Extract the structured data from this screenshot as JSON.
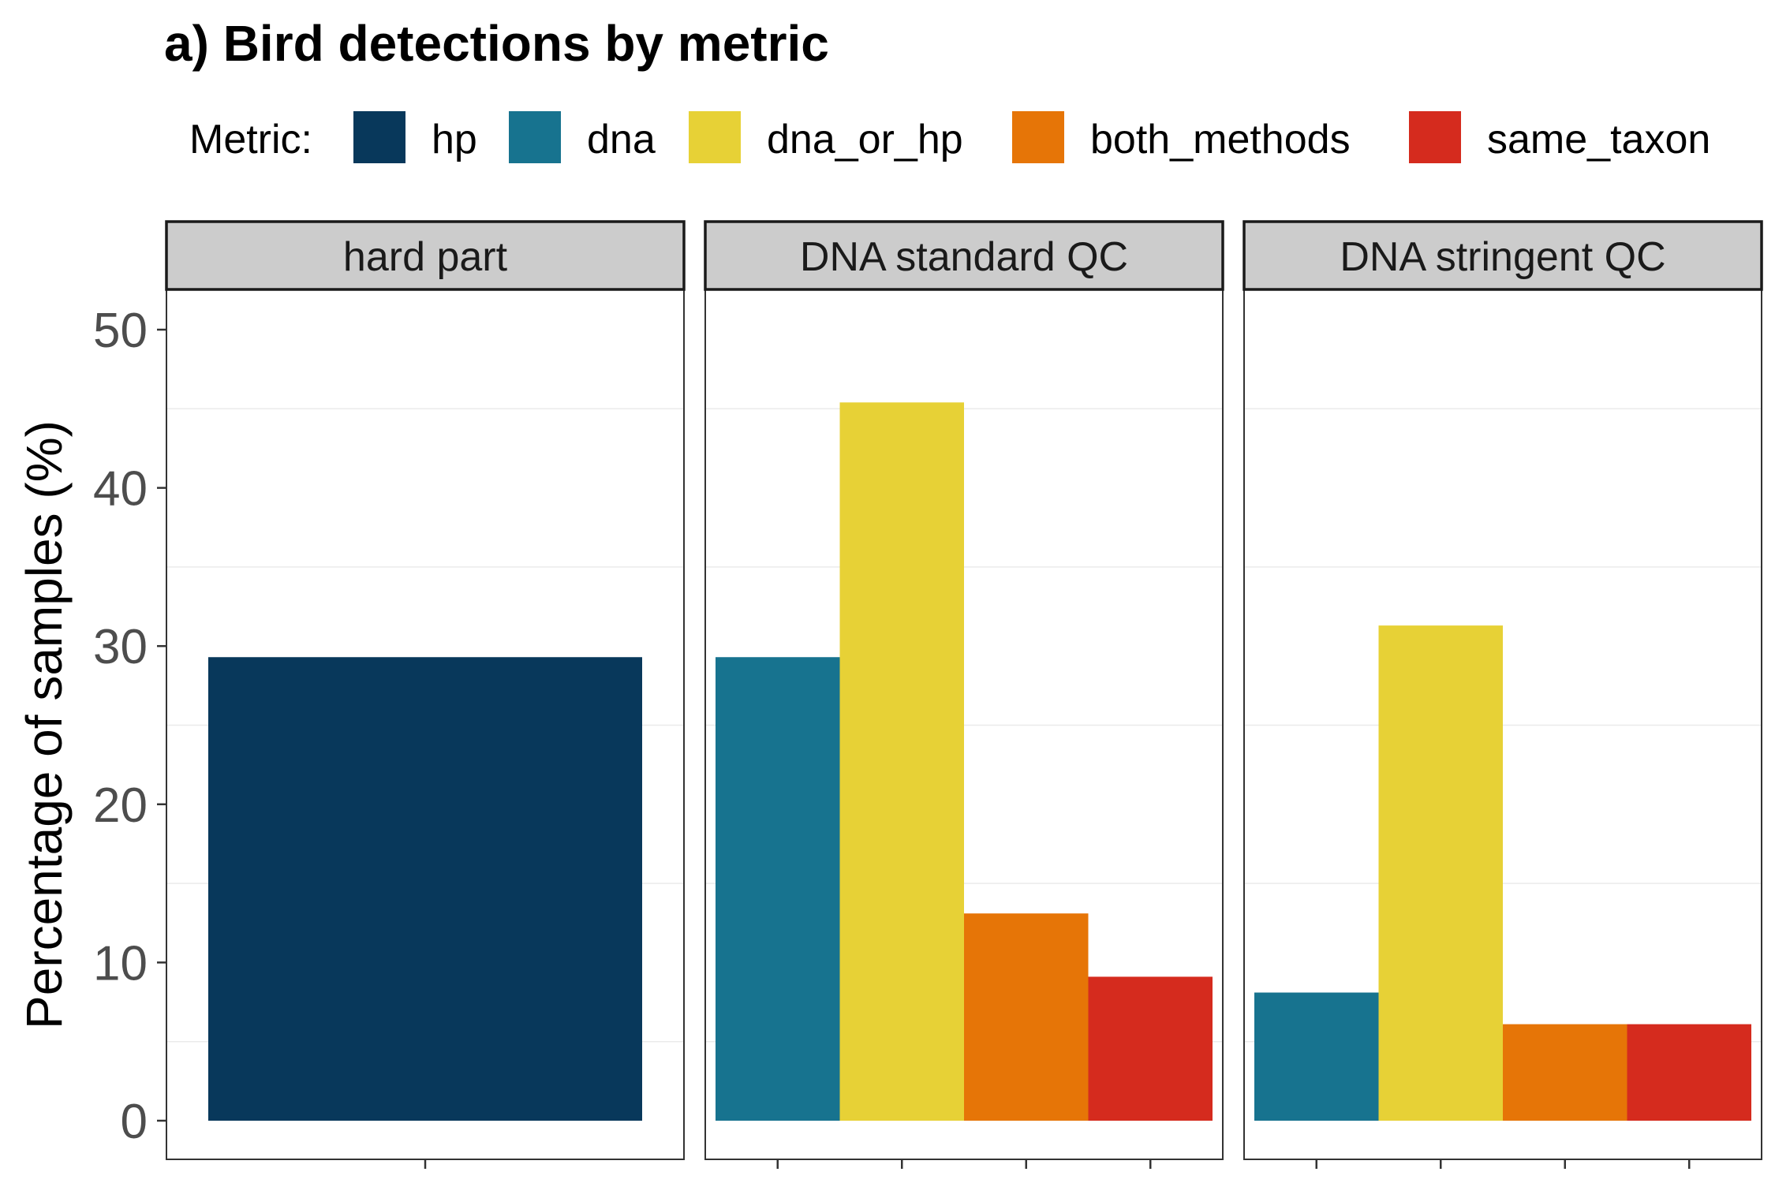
{
  "title": "a) Bird detections by metric",
  "legend": {
    "title": "Metric:",
    "entries": [
      {
        "key": "hp",
        "label": "hp",
        "color": "#08385B"
      },
      {
        "key": "dna",
        "label": "dna",
        "color": "#17738F"
      },
      {
        "key": "dna_or_hp",
        "label": "dna_or_hp",
        "color": "#E7D136"
      },
      {
        "key": "both_methods",
        "label": "both_methods",
        "color": "#E67507"
      },
      {
        "key": "same_taxon",
        "label": "same_taxon",
        "color": "#D52B1E"
      }
    ]
  },
  "chart_data": {
    "type": "bar",
    "title": "a) Bird detections by metric",
    "ylabel": "Percentage of samples (%)",
    "xlabel": "",
    "ylim": [
      0,
      52.5
    ],
    "yticks": [
      0,
      10,
      20,
      30,
      40,
      50
    ],
    "grid": true,
    "legend_position": "top",
    "facets": [
      {
        "label": "hard part",
        "bars": [
          {
            "metric": "hp",
            "value": 29.3
          }
        ]
      },
      {
        "label": "DNA standard QC",
        "bars": [
          {
            "metric": "dna",
            "value": 29.3
          },
          {
            "metric": "dna_or_hp",
            "value": 45.4
          },
          {
            "metric": "both_methods",
            "value": 13.1
          },
          {
            "metric": "same_taxon",
            "value": 9.1
          }
        ]
      },
      {
        "label": "DNA stringent QC",
        "bars": [
          {
            "metric": "dna",
            "value": 8.1
          },
          {
            "metric": "dna_or_hp",
            "value": 31.3
          },
          {
            "metric": "both_methods",
            "value": 6.1
          },
          {
            "metric": "same_taxon",
            "value": 6.1
          }
        ]
      }
    ]
  }
}
